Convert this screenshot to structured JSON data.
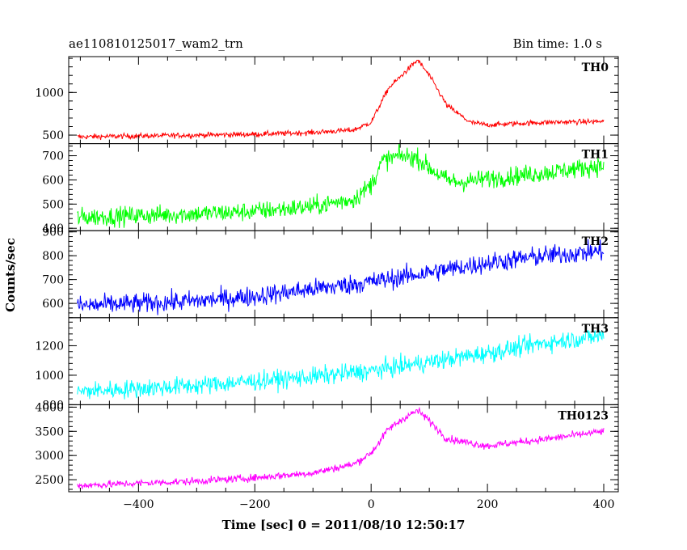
{
  "header": {
    "left_title": "ae110810125017_wam2_trn",
    "right_title": "Bin time: 1.0 s"
  },
  "chart_data": {
    "type": "line",
    "xlabel": "Time [sec] 0 = 2011/08/10 12:50:17",
    "ylabel": "Counts/sec",
    "xlim": [
      -520,
      425
    ],
    "xticks": [
      -400,
      -200,
      0,
      200,
      400
    ],
    "xtick_labels": [
      "−400",
      "−200",
      "0",
      "200",
      "400"
    ],
    "grid": false,
    "panels": [
      {
        "label": "TH0",
        "color": "#ff0000",
        "ylim": [
          400,
          1420
        ],
        "yticks": [
          500,
          1000
        ],
        "noise": 22,
        "series": {
          "x": [
            -500,
            -300,
            -200,
            -100,
            -30,
            0,
            30,
            60,
            80,
            100,
            130,
            170,
            200,
            300,
            400
          ],
          "values": [
            480,
            500,
            510,
            530,
            560,
            650,
            1050,
            1250,
            1380,
            1200,
            850,
            650,
            620,
            650,
            660
          ]
        }
      },
      {
        "label": "TH1",
        "color": "#00ff00",
        "ylim": [
          390,
          750
        ],
        "yticks": [
          400,
          500,
          600,
          700
        ],
        "noise": 28,
        "series": {
          "x": [
            -500,
            -300,
            -200,
            -100,
            -30,
            0,
            20,
            50,
            80,
            100,
            130,
            150,
            200,
            300,
            400
          ],
          "values": [
            445,
            460,
            470,
            490,
            520,
            580,
            680,
            700,
            690,
            650,
            600,
            590,
            605,
            630,
            660
          ]
        }
      },
      {
        "label": "TH2",
        "color": "#0000ff",
        "ylim": [
          540,
          905
        ],
        "yticks": [
          600,
          700,
          800,
          900
        ],
        "noise": 30,
        "series": {
          "x": [
            -500,
            -300,
            -200,
            -100,
            0,
            100,
            200,
            300,
            400
          ],
          "values": [
            590,
            610,
            630,
            660,
            690,
            730,
            770,
            800,
            820
          ]
        }
      },
      {
        "label": "TH3",
        "color": "#00ffff",
        "ylim": [
          800,
          1390
        ],
        "yticks": [
          800,
          1000,
          1200
        ],
        "noise": 45,
        "series": {
          "x": [
            -500,
            -300,
            -200,
            -100,
            0,
            100,
            200,
            300,
            400
          ],
          "values": [
            890,
            930,
            960,
            990,
            1030,
            1090,
            1150,
            1220,
            1270
          ]
        }
      },
      {
        "label": "TH0123",
        "color": "#ff00ff",
        "ylim": [
          2250,
          4050
        ],
        "yticks": [
          2500,
          3000,
          3500,
          4000
        ],
        "noise": 55,
        "series": {
          "x": [
            -500,
            -300,
            -200,
            -100,
            -30,
            0,
            30,
            60,
            80,
            100,
            130,
            170,
            200,
            300,
            400
          ],
          "values": [
            2380,
            2470,
            2540,
            2640,
            2820,
            3050,
            3550,
            3800,
            3930,
            3720,
            3350,
            3260,
            3200,
            3340,
            3500
          ]
        }
      }
    ]
  }
}
